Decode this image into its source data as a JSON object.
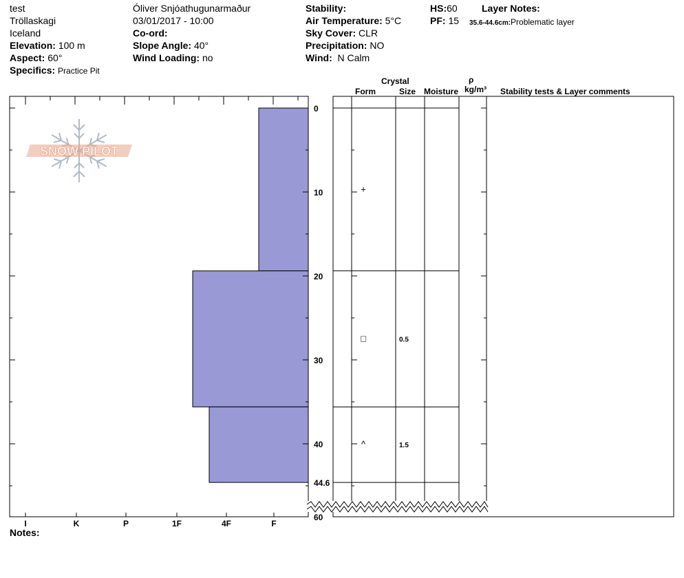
{
  "header": {
    "col1": {
      "name": "test",
      "location": "Tröllaskagi",
      "country": "Iceland",
      "elevation_label": "Elevation:",
      "elevation_value": "100 m",
      "aspect_label": "Aspect:",
      "aspect_value": "60°",
      "specifics_label": "Specifics:",
      "specifics_value": "Practice Pit"
    },
    "col2": {
      "observer": "Óliver Snjóathugunarmaður",
      "datetime": "03/01/2017 - 10:00",
      "coord_label": "Co-ord:",
      "slope_label": "Slope Angle:",
      "slope_value": "40°",
      "wind_loading_label": "Wind Loading:",
      "wind_loading_value": "no"
    },
    "col3": {
      "stability_label": "Stability:",
      "air_temp_label": "Air Temperature:",
      "air_temp_value": "5°C",
      "sky_label": "Sky Cover:",
      "sky_value": "CLR",
      "precip_label": "Precipitation:",
      "precip_value": "NO",
      "wind_label": "Wind:",
      "wind_value": "N Calm"
    },
    "col4": {
      "hs_label": "HS:",
      "hs_value": "60",
      "pf_label": "PF:",
      "pf_value": "15",
      "layer_notes_label": "Layer Notes:",
      "layer_note_range": "35.6-44.6cm:",
      "layer_note_text": "Problematic layer"
    }
  },
  "logo": {
    "text": "SNOW PILOT"
  },
  "table_headers": {
    "crystal": "Crystal",
    "form": "Form",
    "size": "Size",
    "moisture": "Moisture",
    "rho": "ρ",
    "density_unit": "kg/m³",
    "comments": "Stability tests & Layer comments"
  },
  "notes_label": "Notes:",
  "colors": {
    "layer_fill": "#9999d6",
    "logo": "#e8a58a",
    "snowflake": "#aab4be"
  },
  "chart_data": {
    "type": "bar",
    "orientation": "horizontal",
    "x_categories": [
      "I",
      "K",
      "P",
      "1F",
      "4F",
      "F"
    ],
    "y_ticks": [
      0,
      10,
      20,
      30,
      40
    ],
    "y_end_labels": [
      "44.6",
      "60"
    ],
    "ylim": [
      0,
      60
    ],
    "total_depth": 44.6,
    "y_axis_break": true,
    "layers": [
      {
        "top": 0,
        "bottom": 19.4,
        "hardness": "F-",
        "form_symbol": "+",
        "size": ""
      },
      {
        "top": 19.4,
        "bottom": 35.6,
        "hardness": "1F-",
        "form_symbol": "□",
        "size": "0.5"
      },
      {
        "top": 35.6,
        "bottom": 44.6,
        "hardness": "4F",
        "form_symbol": "^",
        "size": "1.5"
      }
    ]
  }
}
